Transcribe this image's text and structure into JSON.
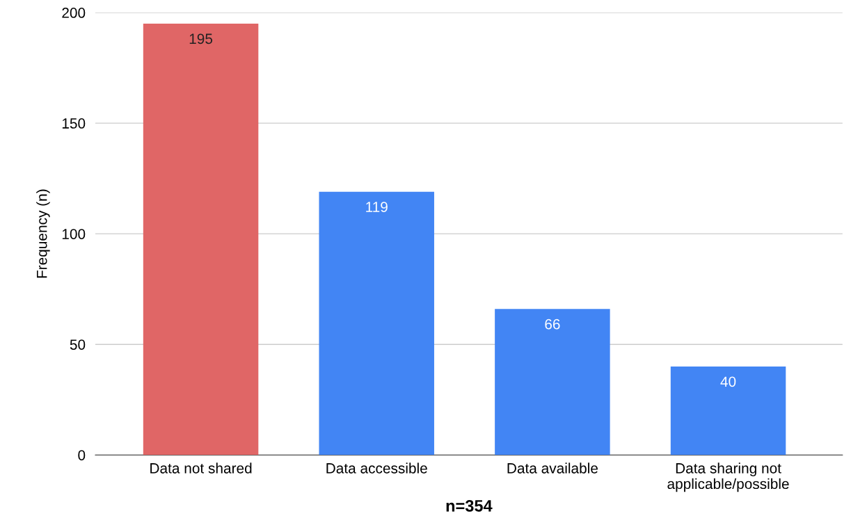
{
  "chart_data": {
    "type": "bar",
    "categories": [
      "Data not shared",
      "Data accessible",
      "Data available",
      "Data sharing not\napplicable/possible"
    ],
    "values": [
      195,
      119,
      66,
      40
    ],
    "colors": [
      "#e06666",
      "#4285f4",
      "#4285f4",
      "#4285f4"
    ],
    "xlabel": "n=354",
    "ylabel": "Frequency (n)",
    "ylim": [
      0,
      200
    ],
    "yticks": [
      0,
      50,
      100,
      150,
      200
    ],
    "grid": "y",
    "data_labels": true
  }
}
